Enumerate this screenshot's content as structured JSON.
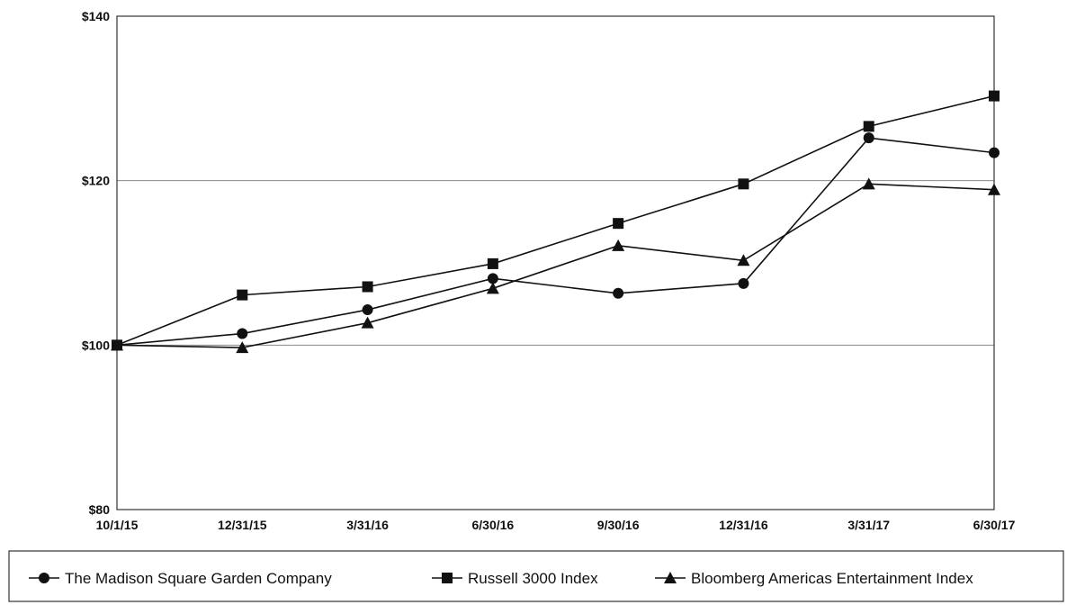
{
  "chart_data": {
    "type": "line",
    "title": "",
    "xlabel": "",
    "ylabel": "",
    "categories": [
      "10/1/15",
      "12/31/15",
      "3/31/16",
      "6/30/16",
      "9/30/16",
      "12/31/16",
      "3/31/17",
      "6/30/17"
    ],
    "ylim": [
      80,
      140
    ],
    "yticks": [
      80,
      100,
      120,
      140
    ],
    "ytick_labels": [
      "$80",
      "$100",
      "$120",
      "$140"
    ],
    "grid": "horizontal lines at $100 and $120",
    "legend_position": "bottom",
    "series": [
      {
        "name": "The Madison Square Garden Company",
        "marker": "circle",
        "values": [
          100.0,
          101.4,
          104.3,
          108.1,
          106.3,
          107.5,
          125.2,
          123.4
        ]
      },
      {
        "name": "Russell 3000 Index",
        "marker": "square",
        "values": [
          100.0,
          106.1,
          107.1,
          109.9,
          114.8,
          119.6,
          126.6,
          130.3
        ]
      },
      {
        "name": "Bloomberg Americas Entertainment Index",
        "marker": "triangle",
        "values": [
          100.0,
          99.7,
          102.7,
          106.9,
          112.1,
          110.3,
          119.6,
          118.9
        ]
      }
    ],
    "colors": {
      "line": "#111111",
      "grid": "#888888",
      "frame": "#333333"
    }
  }
}
